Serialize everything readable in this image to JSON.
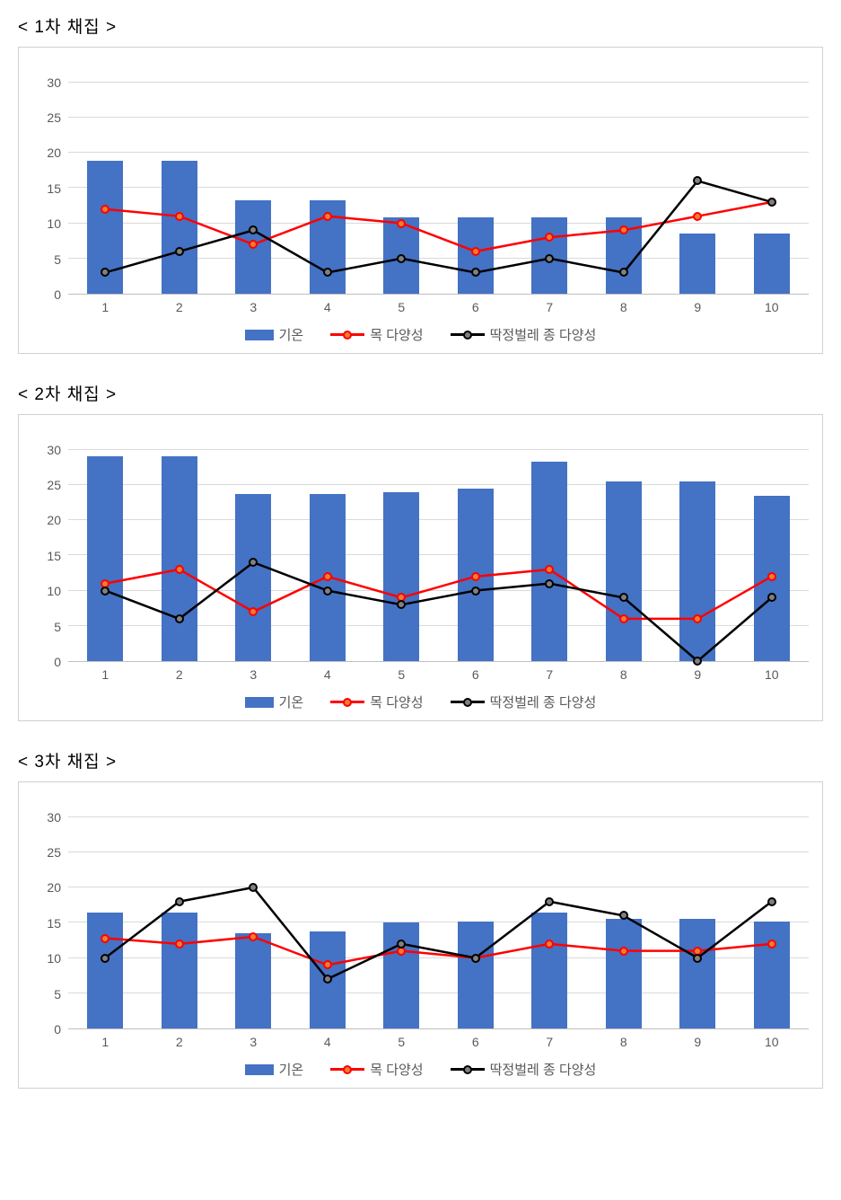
{
  "charts": [
    {
      "title": "< 1차 채집 >",
      "type": "bar+line",
      "categories": [
        "1",
        "2",
        "3",
        "4",
        "5",
        "6",
        "7",
        "8",
        "9",
        "10"
      ],
      "ylim": [
        0,
        33
      ],
      "yticks": [
        0,
        5,
        10,
        15,
        20,
        25,
        30
      ],
      "grid_color": "#d9d9d9",
      "axis_color": "#bfbfbf",
      "background_color": "#ffffff",
      "border_color": "#d0d0d0",
      "tick_fontsize": 14,
      "tick_color": "#595959",
      "bar": {
        "label": "기온",
        "color": "#4472c4",
        "values": [
          18.8,
          18.8,
          13.3,
          13.3,
          10.8,
          10.8,
          10.8,
          10.8,
          8.5,
          8.5
        ],
        "width": 0.48
      },
      "line1": {
        "label": "목 다양성",
        "line_color": "#ff0000",
        "line_width": 2.5,
        "marker_fill": "#ed7d31",
        "marker_stroke": "#ff0000",
        "marker_size": 5,
        "values": [
          12,
          11,
          7,
          11,
          10,
          6,
          8,
          9,
          11,
          13
        ]
      },
      "line2": {
        "label": "딱정벌레 종 다양성",
        "line_color": "#000000",
        "line_width": 2.5,
        "marker_fill": "#808080",
        "marker_stroke": "#000000",
        "marker_size": 5,
        "values": [
          3,
          6,
          9,
          3,
          5,
          3,
          5,
          3,
          16,
          13
        ]
      }
    },
    {
      "title": "< 2차 채집 >",
      "type": "bar+line",
      "categories": [
        "1",
        "2",
        "3",
        "4",
        "5",
        "6",
        "7",
        "8",
        "9",
        "10"
      ],
      "ylim": [
        0,
        33
      ],
      "yticks": [
        0,
        5,
        10,
        15,
        20,
        25,
        30
      ],
      "grid_color": "#d9d9d9",
      "axis_color": "#bfbfbf",
      "background_color": "#ffffff",
      "border_color": "#d0d0d0",
      "tick_fontsize": 14,
      "tick_color": "#595959",
      "bar": {
        "label": "기온",
        "color": "#4472c4",
        "values": [
          29,
          29,
          23.7,
          23.7,
          24,
          24.5,
          28.3,
          25.5,
          25.5,
          23.4
        ],
        "width": 0.48
      },
      "line1": {
        "label": "목 다양성",
        "line_color": "#ff0000",
        "line_width": 2.5,
        "marker_fill": "#ed7d31",
        "marker_stroke": "#ff0000",
        "marker_size": 5,
        "values": [
          11,
          13,
          7,
          12,
          9,
          12,
          13,
          6,
          6,
          12
        ]
      },
      "line2": {
        "label": "딱정벌레 종 다양성",
        "line_color": "#000000",
        "line_width": 2.5,
        "marker_fill": "#808080",
        "marker_stroke": "#000000",
        "marker_size": 5,
        "values": [
          10,
          6,
          14,
          10,
          8,
          10,
          11,
          9,
          0,
          9
        ]
      }
    },
    {
      "title": "< 3차 채집 >",
      "type": "bar+line",
      "categories": [
        "1",
        "2",
        "3",
        "4",
        "5",
        "6",
        "7",
        "8",
        "9",
        "10"
      ],
      "ylim": [
        0,
        33
      ],
      "yticks": [
        0,
        5,
        10,
        15,
        20,
        25,
        30
      ],
      "grid_color": "#d9d9d9",
      "axis_color": "#bfbfbf",
      "background_color": "#ffffff",
      "border_color": "#d0d0d0",
      "tick_fontsize": 14,
      "tick_color": "#595959",
      "bar": {
        "label": "기온",
        "color": "#4472c4",
        "values": [
          16.5,
          16.5,
          13.5,
          13.7,
          15,
          15.2,
          16.5,
          15.5,
          15.5,
          15.2
        ],
        "width": 0.48
      },
      "line1": {
        "label": "목 다양성",
        "line_color": "#ff0000",
        "line_width": 2.5,
        "marker_fill": "#ed7d31",
        "marker_stroke": "#ff0000",
        "marker_size": 5,
        "values": [
          12.8,
          12,
          13,
          9,
          11,
          10,
          12,
          11,
          11,
          12
        ]
      },
      "line2": {
        "label": "딱정벌레 종 다양성",
        "line_color": "#000000",
        "line_width": 2.5,
        "marker_fill": "#808080",
        "marker_stroke": "#000000",
        "marker_size": 5,
        "values": [
          10,
          18,
          20,
          7,
          12,
          10,
          18,
          16,
          10,
          18
        ]
      }
    }
  ]
}
